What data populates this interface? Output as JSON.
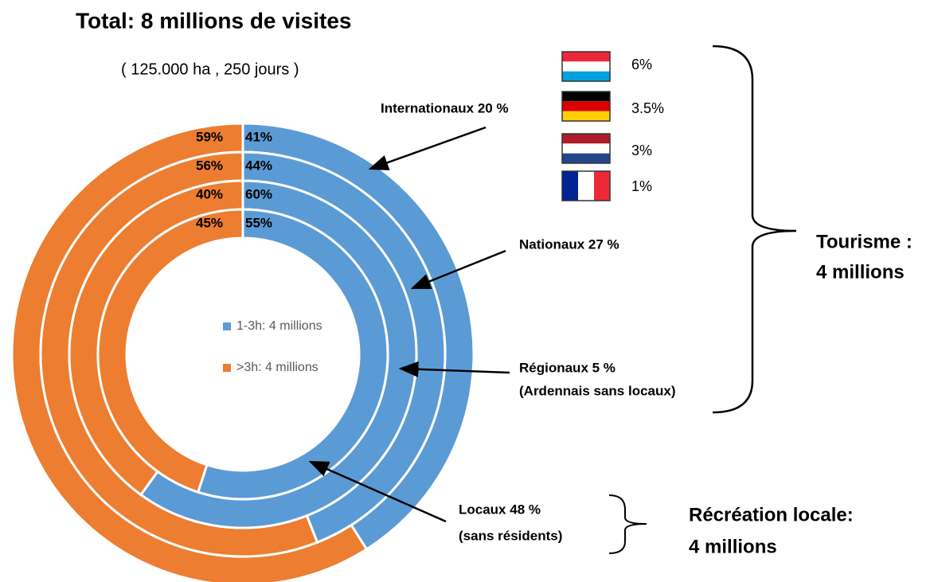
{
  "chart_data": {
    "type": "donut",
    "title": "Total: 8 millions de visites",
    "subtitle": "( 125.000 ha , 250 jours )",
    "series": [
      {
        "name": "1-3h: 4 millions",
        "color": "#5b9bd5",
        "values": [
          41,
          44,
          60,
          55
        ],
        "value_labels": [
          "41%",
          "44%",
          "60%",
          "55%"
        ]
      },
      {
        "name": ">3h: 4 millions",
        "color": "#ed7d31",
        "values": [
          59,
          56,
          40,
          45
        ],
        "value_labels": [
          "59%",
          "56%",
          "40%",
          "45%"
        ]
      }
    ],
    "ring_labels": [
      [
        "Internationaux  20 %"
      ],
      [
        "Nationaux  27 %"
      ],
      [
        "Régionaux 5 %",
        "(Ardennais sans locaux)"
      ],
      [
        "Locaux  48 %",
        "(sans résidents)"
      ]
    ],
    "flags": {
      "values": [
        6,
        3.5,
        3,
        1
      ],
      "value_labels": [
        "6%",
        "3.5%",
        "3%",
        "1%"
      ]
    },
    "groups": [
      [
        "Tourisme :",
        "4 millions"
      ],
      [
        "Récréation locale:",
        "4 millions"
      ]
    ]
  }
}
